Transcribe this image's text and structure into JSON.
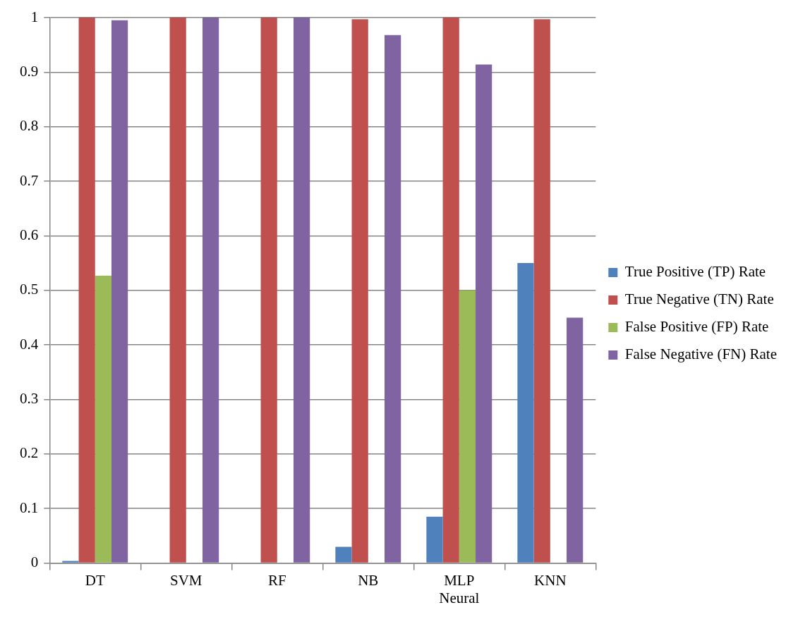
{
  "chart_data": {
    "type": "bar",
    "categories": [
      "DT",
      "SVM",
      "RF",
      "NB",
      "MLP\nNeural",
      "KNN"
    ],
    "series": [
      {
        "name": "True Positive (TP) Rate",
        "color": "#4f81bd",
        "values": [
          0.004,
          0,
          0,
          0.03,
          0.085,
          0.55
        ]
      },
      {
        "name": "True Negative (TN) Rate",
        "color": "#c0504d",
        "values": [
          1,
          1,
          1,
          0.997,
          1,
          0.997
        ]
      },
      {
        "name": "False Positive (FP) Rate",
        "color": "#9bbb59",
        "values": [
          0.527,
          0,
          0,
          0,
          0.5,
          0
        ]
      },
      {
        "name": "False Negative (FN) Rate",
        "color": "#8064a2",
        "values": [
          0.995,
          1,
          1,
          0.968,
          0.914,
          0.45
        ]
      }
    ],
    "ylim": [
      0,
      1
    ],
    "yticks": [
      0,
      0.1,
      0.2,
      0.3,
      0.4,
      0.5,
      0.6,
      0.7,
      0.8,
      0.9,
      1
    ],
    "grid": "y",
    "legend": "right"
  }
}
